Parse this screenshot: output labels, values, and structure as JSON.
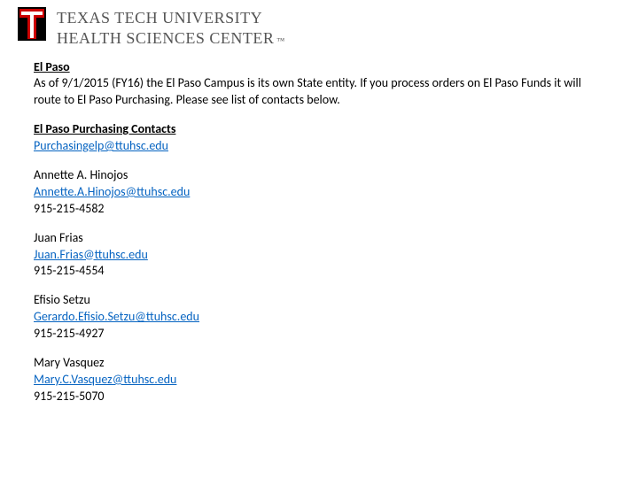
{
  "header": {
    "line1": "TEXAS TECH UNIVERSITY",
    "line2": "HEALTH SCIENCES CENTER",
    "tm": "™",
    "logo_colors": {
      "red": "#cc0000",
      "black": "#000000",
      "white": "#ffffff"
    }
  },
  "content": {
    "section_title": "El Paso",
    "intro_text": "As of 9/1/2015 (FY16) the El Paso Campus is its own State entity.  If you process orders on El Paso Funds it will route to El Paso Purchasing.  Please see list of contacts below.",
    "contacts_heading": "El Paso Purchasing Contacts",
    "main_email": "Purchasingelp@ttuhsc.edu",
    "contacts": [
      {
        "name": "Annette A. Hinojos",
        "email": "Annette.A.Hinojos@ttuhsc.edu",
        "phone": "915-215-4582"
      },
      {
        "name": "Juan Frias",
        "email": "Juan.Frias@ttuhsc.edu",
        "phone": "915-215-4554"
      },
      {
        "name": "Efisio Setzu",
        "email": "Gerardo.Efisio.Setzu@ttuhsc.edu",
        "phone": "915-215-4927"
      },
      {
        "name": "Mary Vasquez",
        "email": "Mary.C.Vasquez@ttuhsc.edu",
        "phone": "915-215-5070"
      }
    ]
  },
  "style": {
    "link_color": "#0563c1",
    "text_color": "#000000",
    "header_text_color": "#555555",
    "font_family": "Calibri",
    "font_size_body": 14,
    "font_size_header": 18,
    "background_color": "#ffffff"
  }
}
